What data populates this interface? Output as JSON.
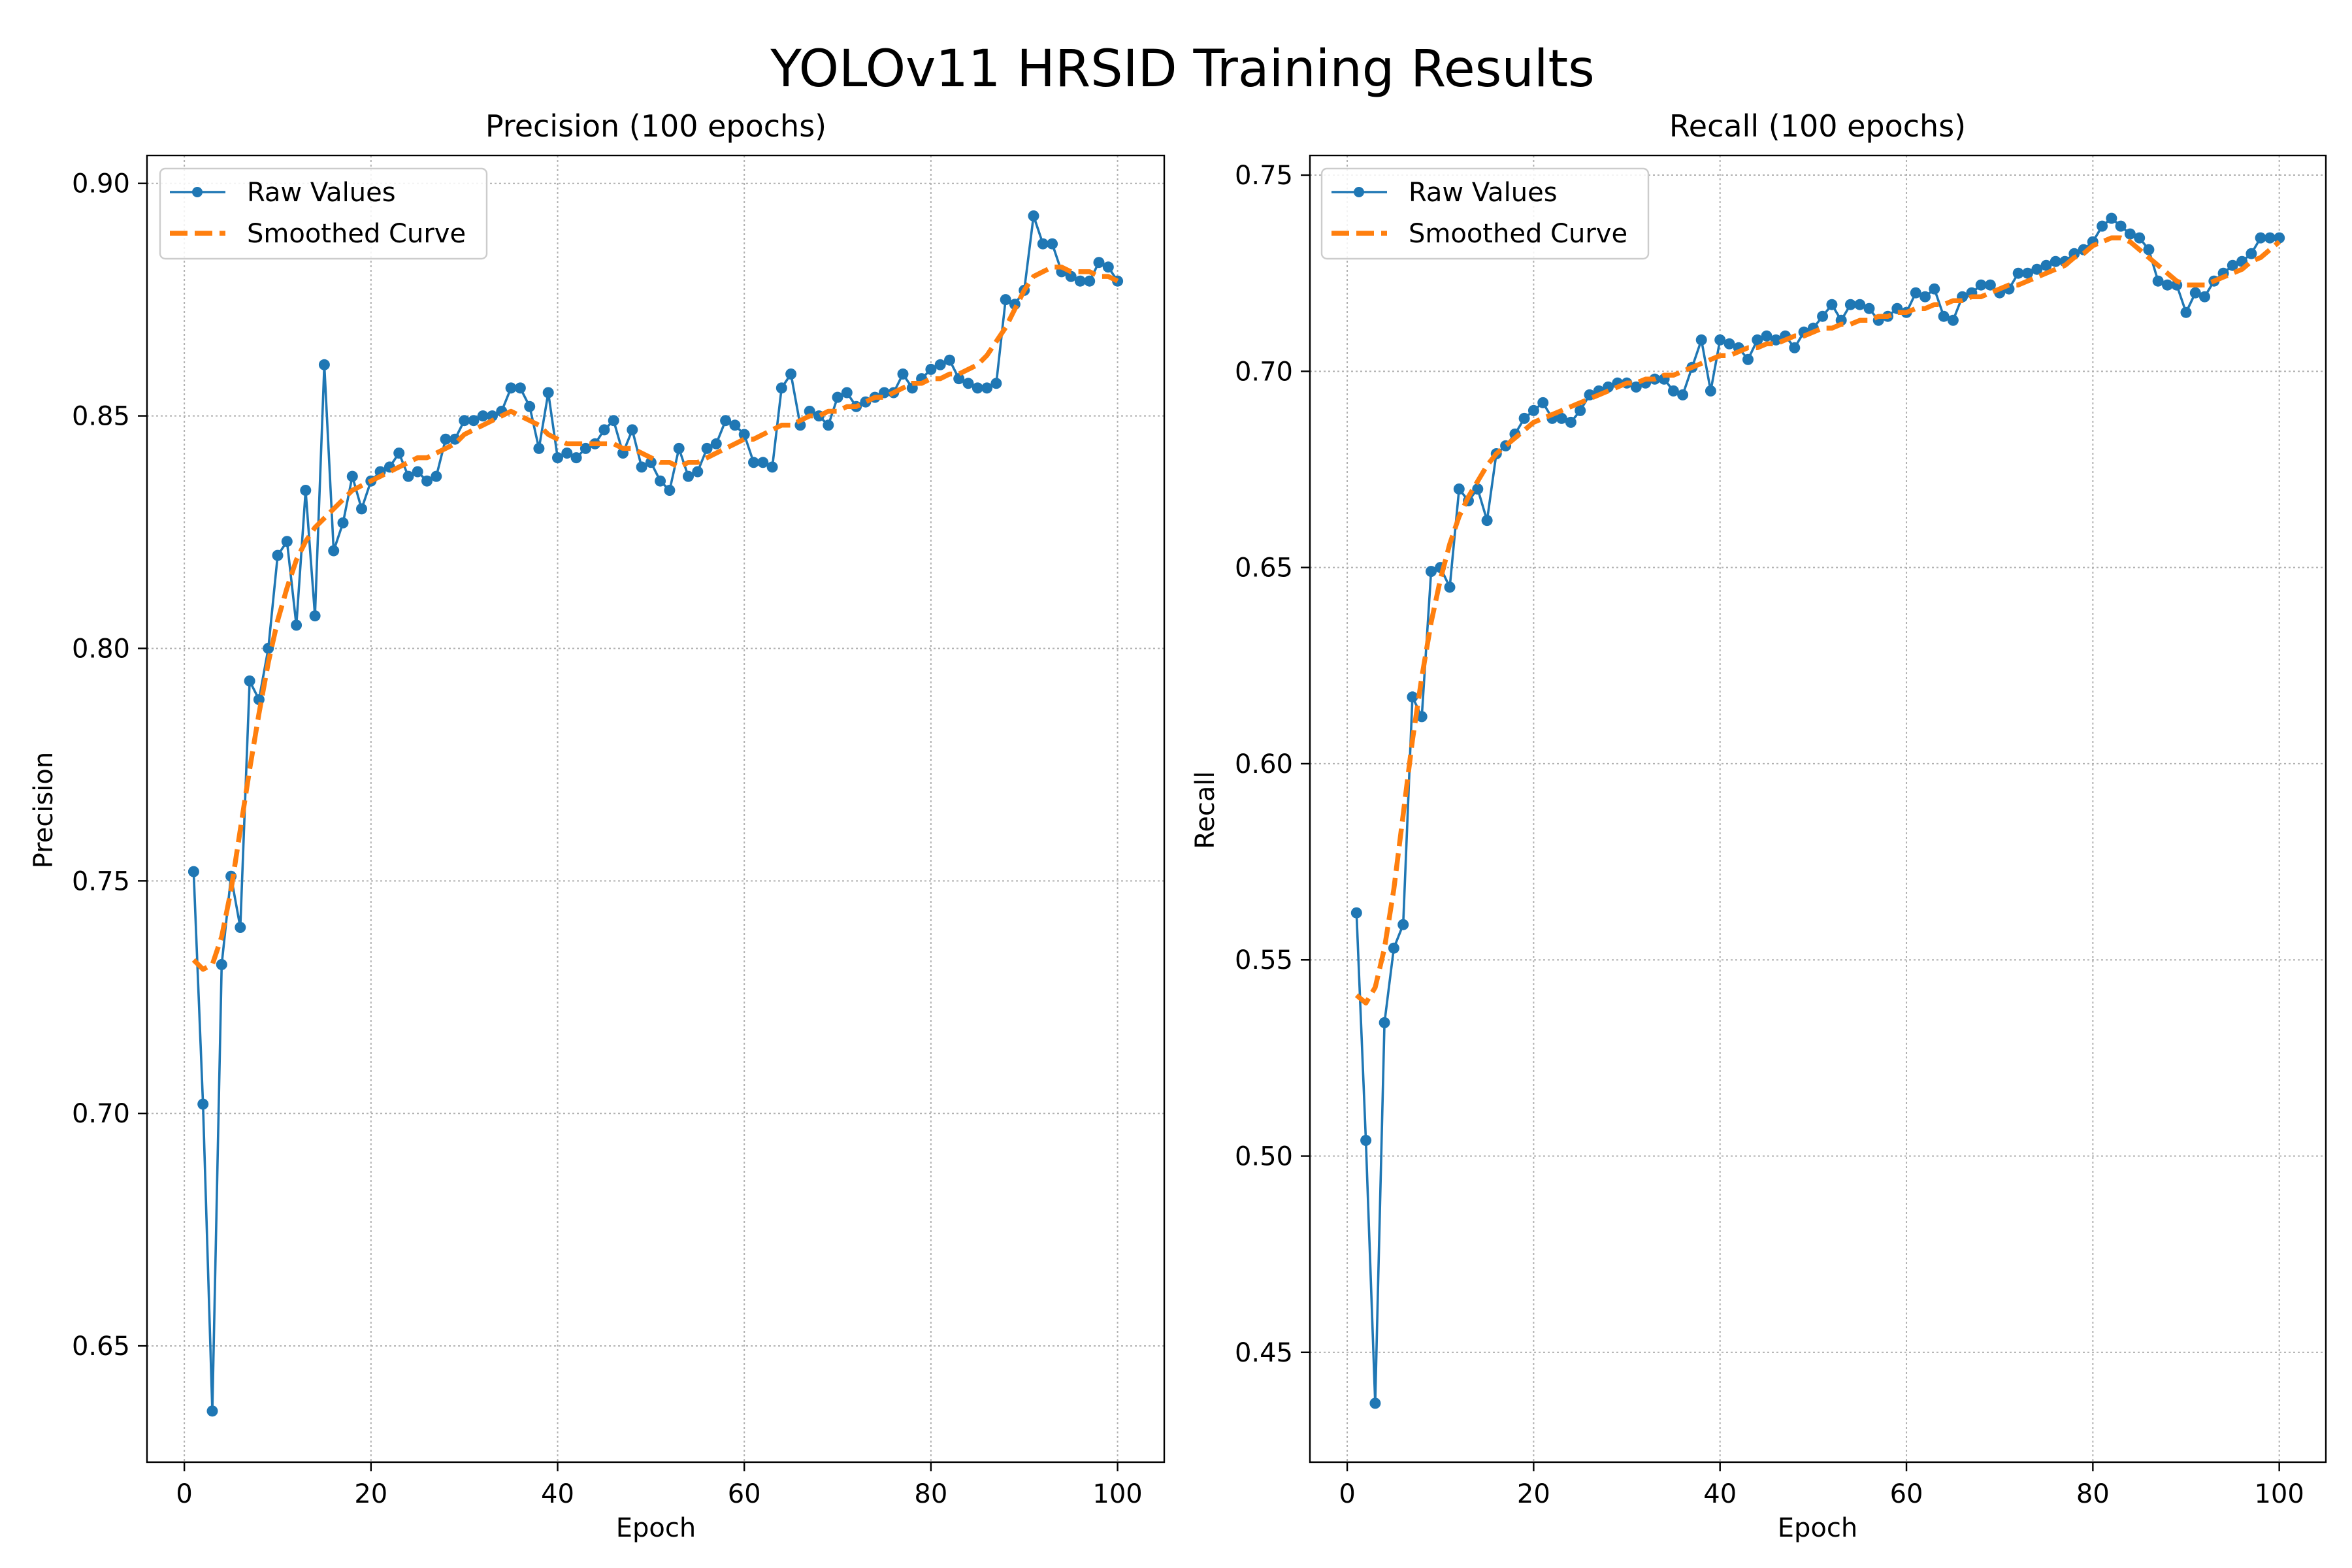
{
  "figure": {
    "title": "YOLOv11 HRSID Training Results"
  },
  "legend": {
    "raw_label": "Raw Values",
    "smooth_label": "Smoothed Curve",
    "placement": "top-left"
  },
  "colors": {
    "raw": "#1f77b4",
    "smooth": "#ff7f0e",
    "grid": "#b0b0b0"
  },
  "chart_data": [
    {
      "type": "line",
      "title": "Precision (100 epochs)",
      "xlabel": "Epoch",
      "ylabel": "Precision",
      "xlim": [
        -4,
        105
      ],
      "ylim": [
        0.625,
        0.906
      ],
      "xticks": [
        0,
        20,
        40,
        60,
        80,
        100
      ],
      "xtick_labels": [
        "0",
        "20",
        "40",
        "60",
        "80",
        "100"
      ],
      "yticks": [
        0.65,
        0.7,
        0.75,
        0.8,
        0.85,
        0.9
      ],
      "ytick_labels": [
        "0.65",
        "0.70",
        "0.75",
        "0.80",
        "0.85",
        "0.90"
      ],
      "grid": true,
      "series": [
        {
          "name": "Raw Values",
          "style": "line-with-markers",
          "x": [
            1,
            2,
            3,
            4,
            5,
            6,
            7,
            8,
            9,
            10,
            11,
            12,
            13,
            14,
            15,
            16,
            17,
            18,
            19,
            20,
            21,
            22,
            23,
            24,
            25,
            26,
            27,
            28,
            29,
            30,
            31,
            32,
            33,
            34,
            35,
            36,
            37,
            38,
            39,
            40,
            41,
            42,
            43,
            44,
            45,
            46,
            47,
            48,
            49,
            50,
            51,
            52,
            53,
            54,
            55,
            56,
            57,
            58,
            59,
            60,
            61,
            62,
            63,
            64,
            65,
            66,
            67,
            68,
            69,
            70,
            71,
            72,
            73,
            74,
            75,
            76,
            77,
            78,
            79,
            80,
            81,
            82,
            83,
            84,
            85,
            86,
            87,
            88,
            89,
            90,
            91,
            92,
            93,
            94,
            95,
            96,
            97,
            98,
            99,
            100
          ],
          "values": [
            0.752,
            0.702,
            0.636,
            0.732,
            0.751,
            0.74,
            0.793,
            0.789,
            0.8,
            0.82,
            0.823,
            0.805,
            0.834,
            0.807,
            0.861,
            0.821,
            0.827,
            0.837,
            0.83,
            0.836,
            0.838,
            0.839,
            0.842,
            0.837,
            0.838,
            0.836,
            0.837,
            0.845,
            0.845,
            0.849,
            0.849,
            0.85,
            0.85,
            0.851,
            0.856,
            0.856,
            0.852,
            0.843,
            0.855,
            0.841,
            0.842,
            0.841,
            0.843,
            0.844,
            0.847,
            0.849,
            0.842,
            0.847,
            0.839,
            0.84,
            0.836,
            0.834,
            0.843,
            0.837,
            0.838,
            0.843,
            0.844,
            0.849,
            0.848,
            0.846,
            0.84,
            0.84,
            0.839,
            0.856,
            0.859,
            0.848,
            0.851,
            0.85,
            0.848,
            0.854,
            0.855,
            0.852,
            0.853,
            0.854,
            0.855,
            0.855,
            0.859,
            0.856,
            0.858,
            0.86,
            0.861,
            0.862,
            0.858,
            0.857,
            0.856,
            0.856,
            0.857,
            0.875,
            0.874,
            0.877,
            0.893,
            0.887,
            0.887,
            0.881,
            0.88,
            0.879,
            0.879,
            0.883,
            0.882,
            0.879
          ]
        },
        {
          "name": "Smoothed Curve",
          "style": "dashed",
          "x": [
            1,
            2,
            3,
            4,
            5,
            6,
            7,
            8,
            9,
            10,
            11,
            12,
            13,
            14,
            15,
            16,
            17,
            18,
            19,
            20,
            21,
            22,
            23,
            24,
            25,
            26,
            27,
            28,
            29,
            30,
            31,
            32,
            33,
            34,
            35,
            36,
            37,
            38,
            39,
            40,
            41,
            42,
            43,
            44,
            45,
            46,
            47,
            48,
            49,
            50,
            51,
            52,
            53,
            54,
            55,
            56,
            57,
            58,
            59,
            60,
            61,
            62,
            63,
            64,
            65,
            66,
            67,
            68,
            69,
            70,
            71,
            72,
            73,
            74,
            75,
            76,
            77,
            78,
            79,
            80,
            81,
            82,
            83,
            84,
            85,
            86,
            87,
            88,
            89,
            90,
            91,
            92,
            93,
            94,
            95,
            96,
            97,
            98,
            99,
            100
          ],
          "values": [
            0.733,
            0.731,
            0.732,
            0.738,
            0.748,
            0.761,
            0.774,
            0.786,
            0.797,
            0.806,
            0.813,
            0.819,
            0.823,
            0.826,
            0.828,
            0.83,
            0.832,
            0.834,
            0.835,
            0.836,
            0.837,
            0.838,
            0.839,
            0.84,
            0.841,
            0.841,
            0.842,
            0.843,
            0.844,
            0.846,
            0.847,
            0.848,
            0.849,
            0.85,
            0.851,
            0.85,
            0.849,
            0.848,
            0.846,
            0.845,
            0.844,
            0.844,
            0.844,
            0.844,
            0.844,
            0.844,
            0.843,
            0.843,
            0.842,
            0.841,
            0.84,
            0.84,
            0.839,
            0.84,
            0.84,
            0.841,
            0.842,
            0.843,
            0.844,
            0.845,
            0.845,
            0.846,
            0.847,
            0.848,
            0.848,
            0.849,
            0.85,
            0.85,
            0.851,
            0.851,
            0.852,
            0.852,
            0.853,
            0.854,
            0.854,
            0.855,
            0.856,
            0.857,
            0.857,
            0.858,
            0.858,
            0.859,
            0.859,
            0.86,
            0.861,
            0.863,
            0.866,
            0.869,
            0.873,
            0.877,
            0.88,
            0.881,
            0.882,
            0.882,
            0.881,
            0.881,
            0.881,
            0.88,
            0.88,
            0.879
          ]
        }
      ]
    },
    {
      "type": "line",
      "title": "Recall (100 epochs)",
      "xlabel": "Epoch",
      "ylabel": "Recall",
      "xlim": [
        -4,
        105
      ],
      "ylim": [
        0.422,
        0.755
      ],
      "xticks": [
        0,
        20,
        40,
        60,
        80,
        100
      ],
      "xtick_labels": [
        "0",
        "20",
        "40",
        "60",
        "80",
        "100"
      ],
      "yticks": [
        0.45,
        0.5,
        0.55,
        0.6,
        0.65,
        0.7,
        0.75
      ],
      "ytick_labels": [
        "0.45",
        "0.50",
        "0.55",
        "0.60",
        "0.65",
        "0.70",
        "0.75"
      ],
      "grid": true,
      "series": [
        {
          "name": "Raw Values",
          "style": "line-with-markers",
          "x": [
            1,
            2,
            3,
            4,
            5,
            6,
            7,
            8,
            9,
            10,
            11,
            12,
            13,
            14,
            15,
            16,
            17,
            18,
            19,
            20,
            21,
            22,
            23,
            24,
            25,
            26,
            27,
            28,
            29,
            30,
            31,
            32,
            33,
            34,
            35,
            36,
            37,
            38,
            39,
            40,
            41,
            42,
            43,
            44,
            45,
            46,
            47,
            48,
            49,
            50,
            51,
            52,
            53,
            54,
            55,
            56,
            57,
            58,
            59,
            60,
            61,
            62,
            63,
            64,
            65,
            66,
            67,
            68,
            69,
            70,
            71,
            72,
            73,
            74,
            75,
            76,
            77,
            78,
            79,
            80,
            81,
            82,
            83,
            84,
            85,
            86,
            87,
            88,
            89,
            90,
            91,
            92,
            93,
            94,
            95,
            96,
            97,
            98,
            99,
            100
          ],
          "values": [
            0.562,
            0.504,
            0.437,
            0.534,
            0.553,
            0.559,
            0.617,
            0.612,
            0.649,
            0.65,
            0.645,
            0.67,
            0.667,
            0.67,
            0.662,
            0.679,
            0.681,
            0.684,
            0.688,
            0.69,
            0.692,
            0.688,
            0.688,
            0.687,
            0.69,
            0.694,
            0.695,
            0.696,
            0.697,
            0.697,
            0.696,
            0.697,
            0.698,
            0.698,
            0.695,
            0.694,
            0.701,
            0.708,
            0.695,
            0.708,
            0.707,
            0.706,
            0.703,
            0.708,
            0.709,
            0.708,
            0.709,
            0.706,
            0.71,
            0.711,
            0.714,
            0.717,
            0.713,
            0.717,
            0.717,
            0.716,
            0.713,
            0.714,
            0.716,
            0.715,
            0.72,
            0.719,
            0.721,
            0.714,
            0.713,
            0.719,
            0.72,
            0.722,
            0.722,
            0.72,
            0.721,
            0.725,
            0.725,
            0.726,
            0.727,
            0.728,
            0.728,
            0.73,
            0.731,
            0.733,
            0.737,
            0.739,
            0.737,
            0.735,
            0.734,
            0.731,
            0.723,
            0.722,
            0.722,
            0.715,
            0.72,
            0.719,
            0.723,
            0.725,
            0.727,
            0.728,
            0.73,
            0.734,
            0.734,
            0.734
          ]
        },
        {
          "name": "Smoothed Curve",
          "style": "dashed",
          "x": [
            1,
            2,
            3,
            4,
            5,
            6,
            7,
            8,
            9,
            10,
            11,
            12,
            13,
            14,
            15,
            16,
            17,
            18,
            19,
            20,
            21,
            22,
            23,
            24,
            25,
            26,
            27,
            28,
            29,
            30,
            31,
            32,
            33,
            34,
            35,
            36,
            37,
            38,
            39,
            40,
            41,
            42,
            43,
            44,
            45,
            46,
            47,
            48,
            49,
            50,
            51,
            52,
            53,
            54,
            55,
            56,
            57,
            58,
            59,
            60,
            61,
            62,
            63,
            64,
            65,
            66,
            67,
            68,
            69,
            70,
            71,
            72,
            73,
            74,
            75,
            76,
            77,
            78,
            79,
            80,
            81,
            82,
            83,
            84,
            85,
            86,
            87,
            88,
            89,
            90,
            91,
            92,
            93,
            94,
            95,
            96,
            97,
            98,
            99,
            100
          ],
          "values": [
            0.541,
            0.539,
            0.543,
            0.553,
            0.568,
            0.587,
            0.606,
            0.622,
            0.636,
            0.647,
            0.656,
            0.663,
            0.668,
            0.672,
            0.676,
            0.679,
            0.681,
            0.683,
            0.685,
            0.687,
            0.688,
            0.689,
            0.69,
            0.691,
            0.692,
            0.693,
            0.694,
            0.695,
            0.696,
            0.697,
            0.697,
            0.698,
            0.698,
            0.699,
            0.699,
            0.7,
            0.701,
            0.702,
            0.703,
            0.704,
            0.704,
            0.705,
            0.706,
            0.706,
            0.707,
            0.707,
            0.708,
            0.709,
            0.709,
            0.71,
            0.711,
            0.711,
            0.712,
            0.712,
            0.713,
            0.713,
            0.714,
            0.714,
            0.715,
            0.715,
            0.716,
            0.716,
            0.717,
            0.717,
            0.718,
            0.718,
            0.719,
            0.719,
            0.72,
            0.721,
            0.722,
            0.722,
            0.723,
            0.724,
            0.725,
            0.726,
            0.727,
            0.729,
            0.73,
            0.732,
            0.733,
            0.734,
            0.734,
            0.733,
            0.731,
            0.729,
            0.727,
            0.725,
            0.723,
            0.722,
            0.722,
            0.722,
            0.723,
            0.724,
            0.725,
            0.726,
            0.728,
            0.729,
            0.731,
            0.733
          ]
        }
      ]
    }
  ]
}
